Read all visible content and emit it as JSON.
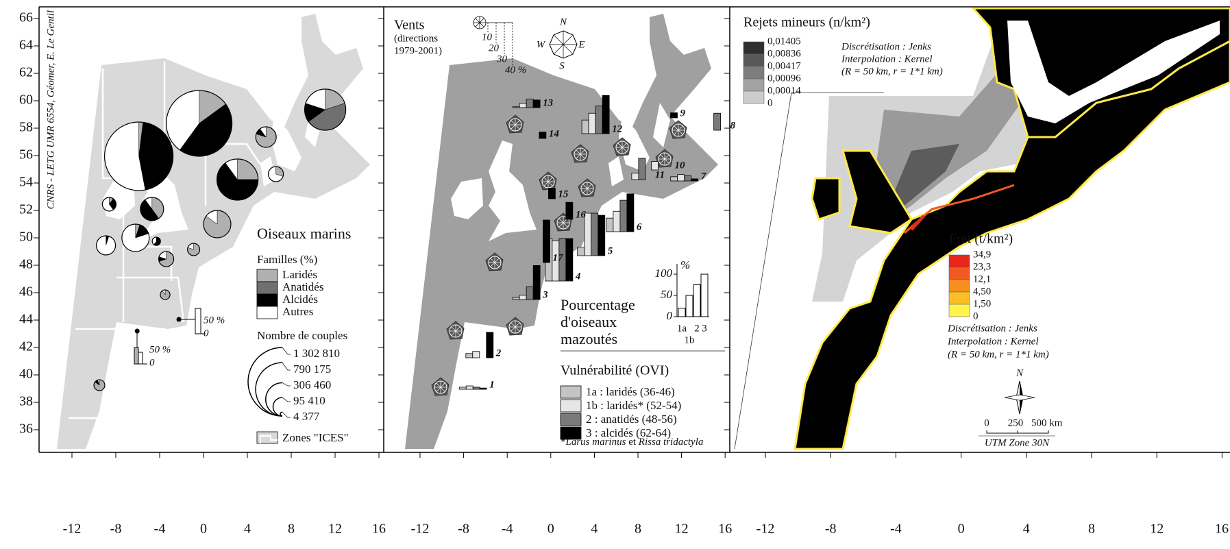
{
  "credit": "CNRS - LETG UMR 6554, Géomer, E. Le Gentil",
  "axes": {
    "yticks": [
      36,
      38,
      40,
      42,
      44,
      46,
      48,
      50,
      52,
      54,
      56,
      58,
      60,
      62,
      64,
      66
    ],
    "xticks": [
      -12,
      -8,
      -4,
      0,
      4,
      8,
      12,
      16
    ]
  },
  "panel1": {
    "title": "Oiseaux marins",
    "families_title": "Familles (%)",
    "families": [
      {
        "name": "Laridés",
        "color": "#b0b0b0"
      },
      {
        "name": "Anatidés",
        "color": "#707070"
      },
      {
        "name": "Alcidés",
        "color": "#000000"
      },
      {
        "name": "Autres",
        "color": "#ffffff"
      }
    ],
    "couples_title": "Nombre de couples",
    "couples": [
      {
        "value": 1302810,
        "label": "1 302 810"
      },
      {
        "value": 790175,
        "label": "790 175"
      },
      {
        "value": 306460,
        "label": "306 460"
      },
      {
        "value": 95410,
        "label": "95 410"
      },
      {
        "value": 4377,
        "label": "4 377"
      }
    ],
    "zones": "Zones \"ICES\"",
    "bar_scale_top": "50 %",
    "bar_scale_zero": "0",
    "colonies": [
      {
        "lon": -5.9,
        "lat": 55.95,
        "couples": 1302810,
        "shares": [
          2,
          0,
          45,
          53
        ]
      },
      {
        "lon": -0.4,
        "lat": 58.35,
        "couples": 1200000,
        "shares": [
          15,
          0,
          45,
          40
        ]
      },
      {
        "lon": 11.1,
        "lat": 59.35,
        "couples": 470000,
        "shares": [
          20,
          45,
          15,
          20
        ]
      },
      {
        "lon": 3.1,
        "lat": 54.25,
        "couples": 470000,
        "shares": [
          25,
          0,
          65,
          10
        ]
      },
      {
        "lon": 1.25,
        "lat": 51.0,
        "couples": 208000,
        "shares": [
          85,
          0,
          0,
          15
        ]
      },
      {
        "lon": 5.7,
        "lat": 57.35,
        "couples": 117000,
        "shares": [
          80,
          0,
          10,
          10
        ]
      },
      {
        "lon": 6.6,
        "lat": 54.65,
        "couples": 63000,
        "shares": [
          30,
          0,
          0,
          70
        ]
      },
      {
        "lon": -4.7,
        "lat": 52.1,
        "couples": 150000,
        "shares": [
          40,
          0,
          50,
          10
        ]
      },
      {
        "lon": -8.6,
        "lat": 52.45,
        "couples": 52000,
        "shares": [
          10,
          0,
          30,
          60
        ]
      },
      {
        "lon": -6.2,
        "lat": 50.0,
        "couples": 208000,
        "shares": [
          5,
          0,
          15,
          80
        ]
      },
      {
        "lon": -8.9,
        "lat": 49.45,
        "couples": 102000,
        "shares": [
          0,
          0,
          5,
          95
        ]
      },
      {
        "lon": -4.3,
        "lat": 49.75,
        "couples": 19000,
        "shares": [
          0,
          0,
          60,
          40
        ]
      },
      {
        "lon": -3.4,
        "lat": 48.45,
        "couples": 63000,
        "shares": [
          70,
          0,
          10,
          20
        ]
      },
      {
        "lon": -0.9,
        "lat": 49.15,
        "couples": 42000,
        "shares": [
          80,
          0,
          0,
          20
        ]
      },
      {
        "lon": -3.5,
        "lat": 45.85,
        "couples": 26000,
        "shares": [
          90,
          0,
          0,
          10
        ]
      },
      {
        "lon": -9.5,
        "lat": 39.25,
        "couples": 33000,
        "shares": [
          85,
          0,
          10,
          5
        ]
      },
      {
        "lon": -2.25,
        "lat": 44.05,
        "couples": 4377,
        "shares": [
          0,
          0,
          100,
          0
        ]
      },
      {
        "lon": -6.05,
        "lat": 43.2,
        "couples": 4377,
        "shares": [
          0,
          0,
          100,
          0
        ]
      }
    ]
  },
  "panel2": {
    "title": "Vents",
    "subtitle_1": "(directions",
    "subtitle_2": "1979-2001)",
    "wind_scale": [
      "10",
      "20",
      "30",
      "40 %"
    ],
    "compass": {
      "n": "N",
      "e": "E",
      "s": "S",
      "w": "W"
    },
    "oiled_title": [
      "Pourcentage",
      "d'oiseaux",
      "mazoutés"
    ],
    "legend_chart": {
      "unit": "%",
      "ticks": [
        0,
        50,
        100
      ],
      "values": [
        20,
        50,
        75,
        100
      ],
      "labels": [
        "1a",
        "1b",
        "2",
        "3"
      ]
    },
    "vulnerability_title": "Vulnérabilité (OVI)",
    "classes": [
      {
        "name": "1a : laridés (36-46)",
        "color": "#c4c4c4"
      },
      {
        "name": "1b : laridés* (52-54)",
        "color": "#e6e6e6"
      },
      {
        "name": "2 : anatidés (48-56)",
        "color": "#7a7a7a"
      },
      {
        "name": "3 : alcidés (62-64)",
        "color": "#000000"
      }
    ],
    "footnote": {
      "mark": "*",
      "species_1": "Larus marinus",
      "and": "et",
      "species_2": "Rissa tridactyla"
    },
    "sites": [
      {
        "label": "1",
        "lon": -8.4,
        "lat": 38.95,
        "values": [
          5,
          8,
          5,
          3
        ]
      },
      {
        "label": "2",
        "lon": -7.8,
        "lat": 41.25,
        "values": [
          10,
          15,
          0,
          60
        ]
      },
      {
        "label": "3",
        "lon": -3.5,
        "lat": 45.5,
        "values": [
          5,
          10,
          30,
          80
        ]
      },
      {
        "label": "4",
        "lon": -0.5,
        "lat": 46.85,
        "values": [
          100,
          95,
          100,
          100
        ]
      },
      {
        "label": "5",
        "lon": 2.45,
        "lat": 48.7,
        "values": [
          20,
          100,
          100,
          95
        ]
      },
      {
        "label": "6",
        "lon": 5.1,
        "lat": 50.45,
        "values": [
          32,
          48,
          74,
          89
        ]
      },
      {
        "label": "7",
        "lon": 11.0,
        "lat": 54.15,
        "values": [
          10,
          15,
          12,
          5
        ]
      },
      {
        "label": "8",
        "lon": 13.7,
        "lat": 57.85,
        "values": [
          0,
          0,
          40,
          0
        ]
      },
      {
        "label": "9",
        "lon": 9.1,
        "lat": 58.75,
        "values": [
          0,
          0,
          0,
          12
        ]
      },
      {
        "label": "10",
        "lon": 8.6,
        "lat": 54.95,
        "values": [
          0,
          20,
          0,
          0
        ]
      },
      {
        "label": "11",
        "lon": 6.8,
        "lat": 54.25,
        "values": [
          0,
          15,
          50,
          0
        ]
      },
      {
        "label": "12",
        "lon": 2.85,
        "lat": 57.6,
        "values": [
          32,
          48,
          65,
          90
        ]
      },
      {
        "label": "13",
        "lon": -3.5,
        "lat": 59.5,
        "values": [
          2,
          10,
          20,
          18
        ]
      },
      {
        "label": "14",
        "lon": -2.95,
        "lat": 57.25,
        "values": [
          0,
          0,
          0,
          15
        ]
      },
      {
        "label": "15",
        "lon": -2.1,
        "lat": 52.85,
        "values": [
          0,
          0,
          0,
          25
        ]
      },
      {
        "label": "16",
        "lon": -0.5,
        "lat": 51.35,
        "values": [
          0,
          0,
          0,
          40
        ]
      },
      {
        "label": "17",
        "lon": -2.6,
        "lat": 48.2,
        "values": [
          0,
          0,
          0,
          100
        ]
      }
    ]
  },
  "panel3": {
    "title": "Rejets mineurs (n/km²)",
    "rejets_breaks": [
      "0,01405",
      "0,00836",
      "0,00417",
      "0,00096",
      "0,00014",
      "0"
    ],
    "rejets_colors": [
      "#2e2e2e",
      "#575757",
      "#7d7d7d",
      "#a3a3a3",
      "#cccccc"
    ],
    "method_1": "Discrétisation : Jenks",
    "method_2": "Interpolation : Kernel",
    "method_3": "(R = 50 km, r = 1*1 km)",
    "fret_title": "Fret (t/km²)",
    "fret_breaks": [
      "34,9",
      "23,3",
      "12,1",
      "4,50",
      "1,50",
      "0"
    ],
    "fret_colors": [
      "#e8261b",
      "#f05a22",
      "#f7901e",
      "#fbbf24",
      "#fff44f"
    ],
    "north": "N",
    "scale_labels": [
      "0",
      "250",
      "500 km"
    ],
    "projection": "UTM Zone 30N"
  }
}
